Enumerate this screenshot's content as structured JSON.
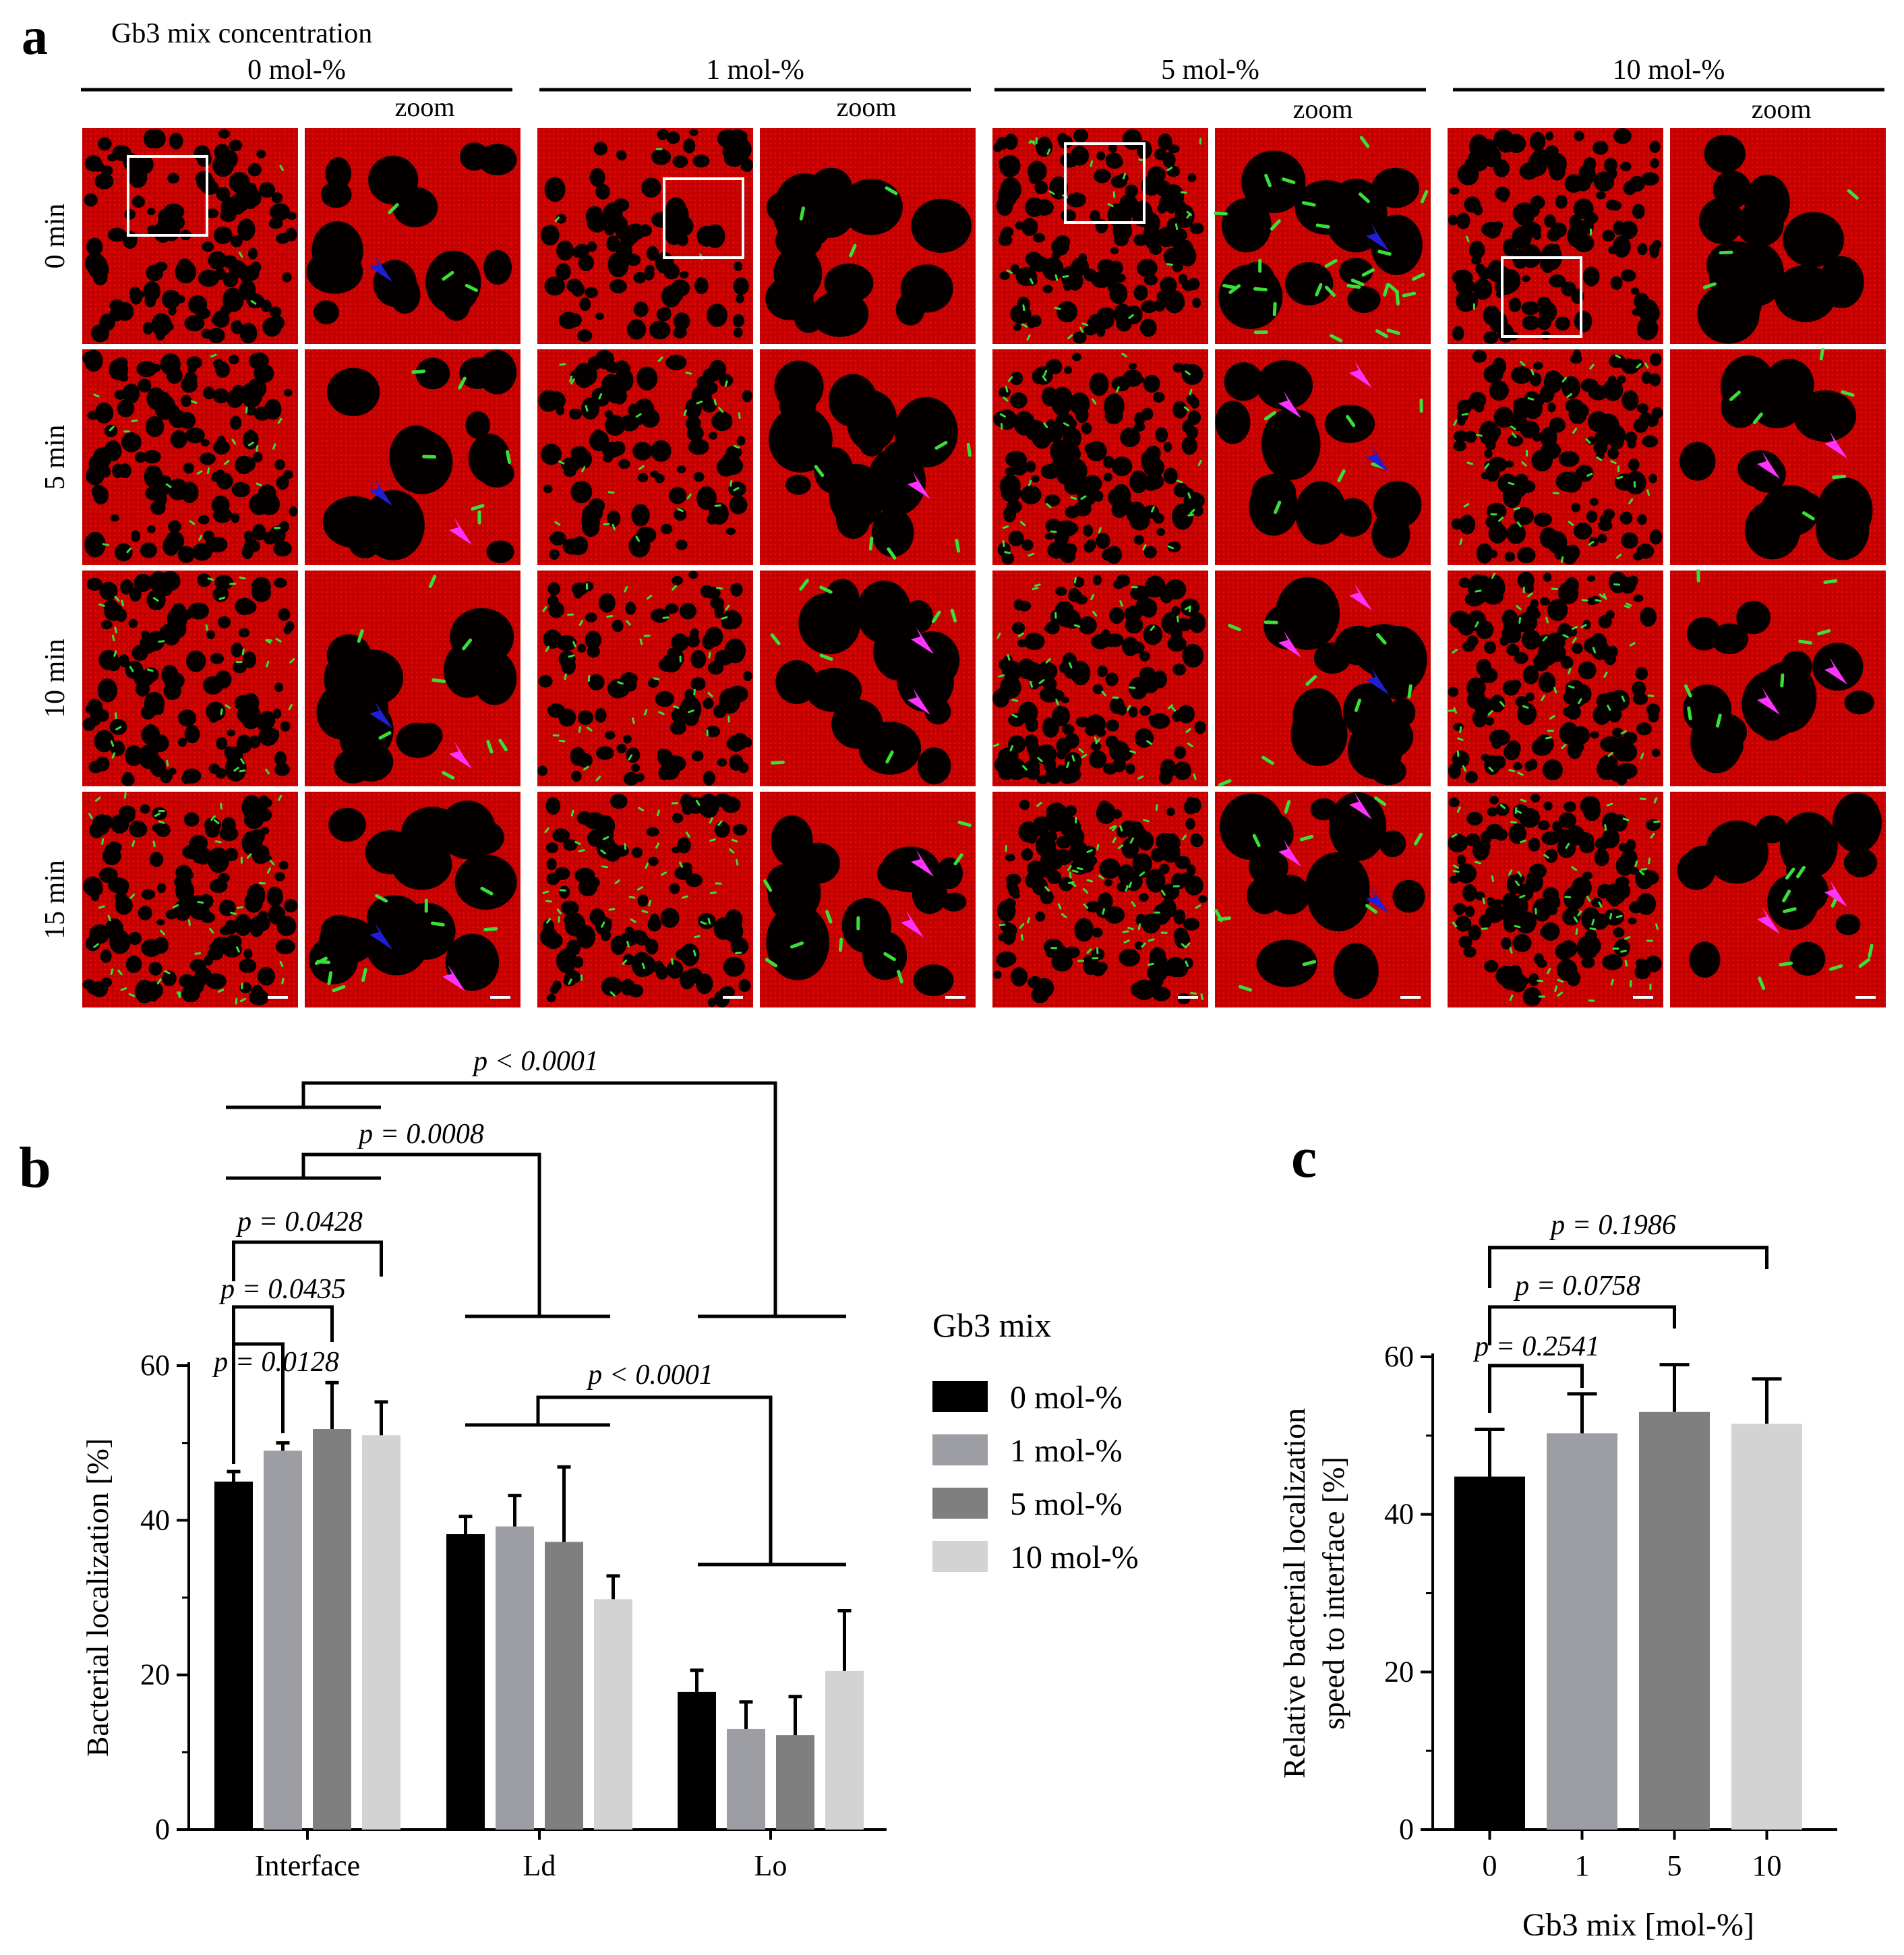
{
  "panel_a": {
    "letter": "a",
    "header": "Gb3 mix concentration",
    "groups": [
      "0 mol-%",
      "1 mol-%",
      "5 mol-%",
      "10 mol-%"
    ],
    "zoom_label": "zoom",
    "rows": [
      "0 min",
      "5 min",
      "10 min",
      "15 min"
    ],
    "colors": {
      "membrane": "#c80000",
      "domain": "#050000",
      "bacteria": "#38e038",
      "arrow_pink": "#ff33ff",
      "arrow_blue": "#1f1fd6"
    }
  },
  "chart_data": [
    {
      "panel": "b",
      "type": "bar",
      "categories": [
        "Interface",
        "Ld",
        "Lo"
      ],
      "ylabel": "Bacterial localization [%]",
      "ylim": [
        0,
        60
      ],
      "yticks": [
        "0",
        "20",
        "40",
        "60"
      ],
      "legend_title": "Gb3 mix",
      "legend_position": "right",
      "series": [
        {
          "name": "0 mol-%",
          "color": "#000000",
          "values": [
            45.0,
            38.2,
            17.8
          ],
          "errors": [
            1.3,
            2.3,
            2.8
          ]
        },
        {
          "name": "1 mol-%",
          "color": "#9d9ea3",
          "values": [
            49.0,
            39.2,
            13.0
          ],
          "errors": [
            1.0,
            4.0,
            3.5
          ]
        },
        {
          "name": "5 mol-%",
          "color": "#7f7f7f",
          "values": [
            51.8,
            37.2,
            12.2
          ],
          "errors": [
            6.0,
            9.7,
            5.0
          ]
        },
        {
          "name": "10 mol-%",
          "color": "#d3d3d3",
          "values": [
            51.0,
            29.8,
            20.5
          ],
          "errors": [
            4.3,
            3.0,
            7.8
          ]
        }
      ],
      "annotations": [
        "p = 0.0128",
        "p = 0.0435",
        "p = 0.0428",
        "p = 0.0008",
        "p < 0.0001",
        "p < 0.0001"
      ]
    },
    {
      "panel": "c",
      "type": "bar",
      "categories": [
        "0",
        "1",
        "5",
        "10"
      ],
      "xlabel": "Gb3 mix [mol-%]",
      "ylabel": "Relative bacterial localization speed to interface [%]",
      "ylabel_lines": [
        "Relative bacterial localization",
        "speed to interface [%]"
      ],
      "ylim": [
        0,
        60
      ],
      "yticks": [
        "0",
        "20",
        "40",
        "60"
      ],
      "values": [
        44.8,
        50.3,
        53.0,
        51.5
      ],
      "errors": [
        6.0,
        5.0,
        6.0,
        5.7
      ],
      "colors": [
        "#000000",
        "#9d9ea3",
        "#7f7f7f",
        "#d3d3d3"
      ],
      "annotations": [
        "p = 0.2541",
        "p = 0.0758",
        "p = 0.1986"
      ]
    }
  ]
}
